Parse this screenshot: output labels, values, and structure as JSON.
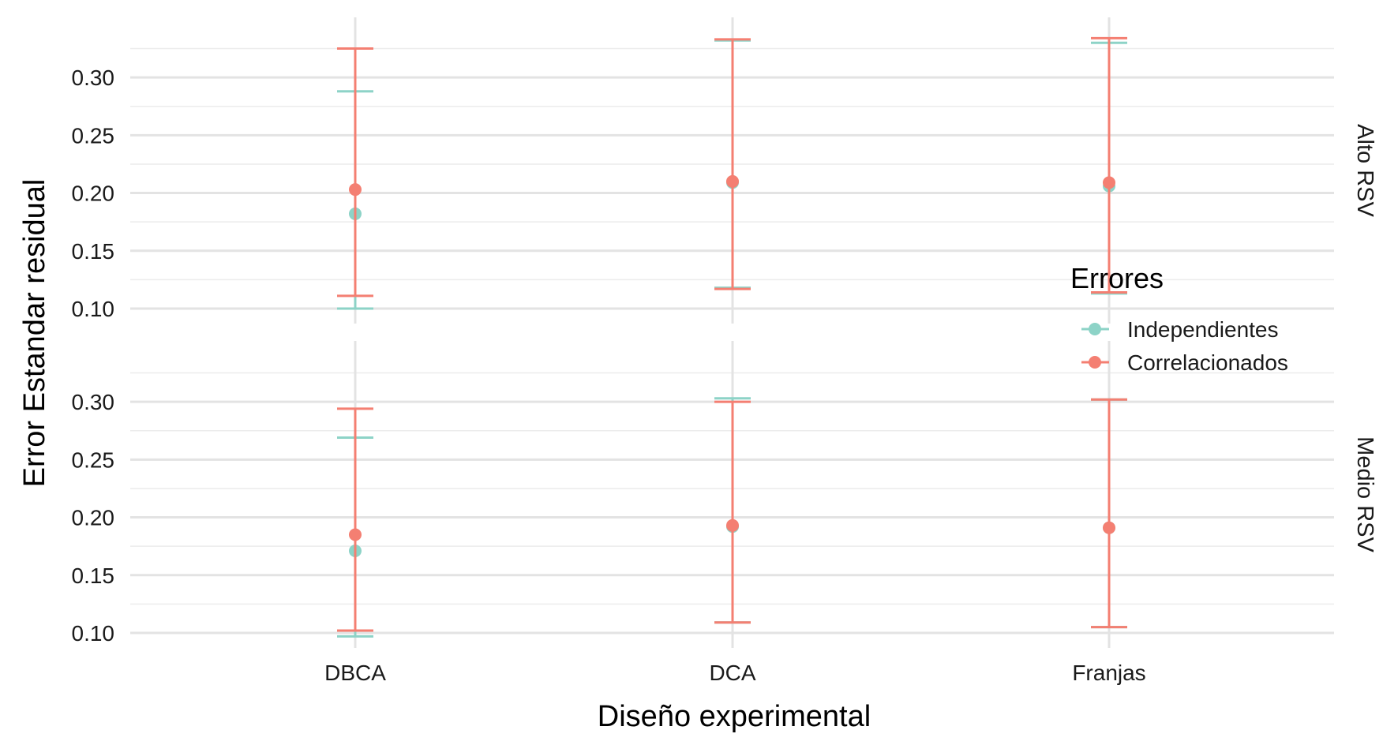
{
  "chart_data": {
    "type": "errorbar",
    "xlabel": "Diseño experimental",
    "ylabel": "Error Estandar residual",
    "categories": [
      "DBCA",
      "DCA",
      "Franjas"
    ],
    "y_ticks": [
      "0.10",
      "0.15",
      "0.20",
      "0.25",
      "0.30"
    ],
    "ylim": [
      0.087,
      0.352
    ],
    "grid": true,
    "legend": {
      "title": "Errores",
      "position": "right",
      "entries": [
        {
          "name": "Independientes",
          "color": "#8DD3C7"
        },
        {
          "name": "Correlacionados",
          "color": "#F47F72"
        }
      ]
    },
    "facets": [
      {
        "label": "Alto RSV",
        "series": [
          {
            "name": "Independientes",
            "color": "#8DD3C7",
            "points": [
              {
                "x": "DBCA",
                "y": 0.182,
                "ymin": 0.1,
                "ymax": 0.288
              },
              {
                "x": "DCA",
                "y": 0.209,
                "ymin": 0.118,
                "ymax": 0.332
              },
              {
                "x": "Franjas",
                "y": 0.206,
                "ymin": 0.113,
                "ymax": 0.33
              }
            ]
          },
          {
            "name": "Correlacionados",
            "color": "#F47F72",
            "points": [
              {
                "x": "DBCA",
                "y": 0.203,
                "ymin": 0.111,
                "ymax": 0.325
              },
              {
                "x": "DCA",
                "y": 0.21,
                "ymin": 0.117,
                "ymax": 0.333
              },
              {
                "x": "Franjas",
                "y": 0.209,
                "ymin": 0.114,
                "ymax": 0.334
              }
            ]
          }
        ]
      },
      {
        "label": "Medio RSV",
        "series": [
          {
            "name": "Independientes",
            "color": "#8DD3C7",
            "points": [
              {
                "x": "DBCA",
                "y": 0.171,
                "ymin": 0.097,
                "ymax": 0.269
              },
              {
                "x": "DCA",
                "y": 0.192,
                "ymin": 0.109,
                "ymax": 0.303
              },
              {
                "x": "Franjas",
                "y": 0.191,
                "ymin": 0.105,
                "ymax": 0.302
              }
            ]
          },
          {
            "name": "Correlacionados",
            "color": "#F47F72",
            "points": [
              {
                "x": "DBCA",
                "y": 0.185,
                "ymin": 0.102,
                "ymax": 0.294
              },
              {
                "x": "DCA",
                "y": 0.193,
                "ymin": 0.109,
                "ymax": 0.3
              },
              {
                "x": "Franjas",
                "y": 0.191,
                "ymin": 0.105,
                "ymax": 0.302
              }
            ]
          }
        ]
      }
    ]
  }
}
